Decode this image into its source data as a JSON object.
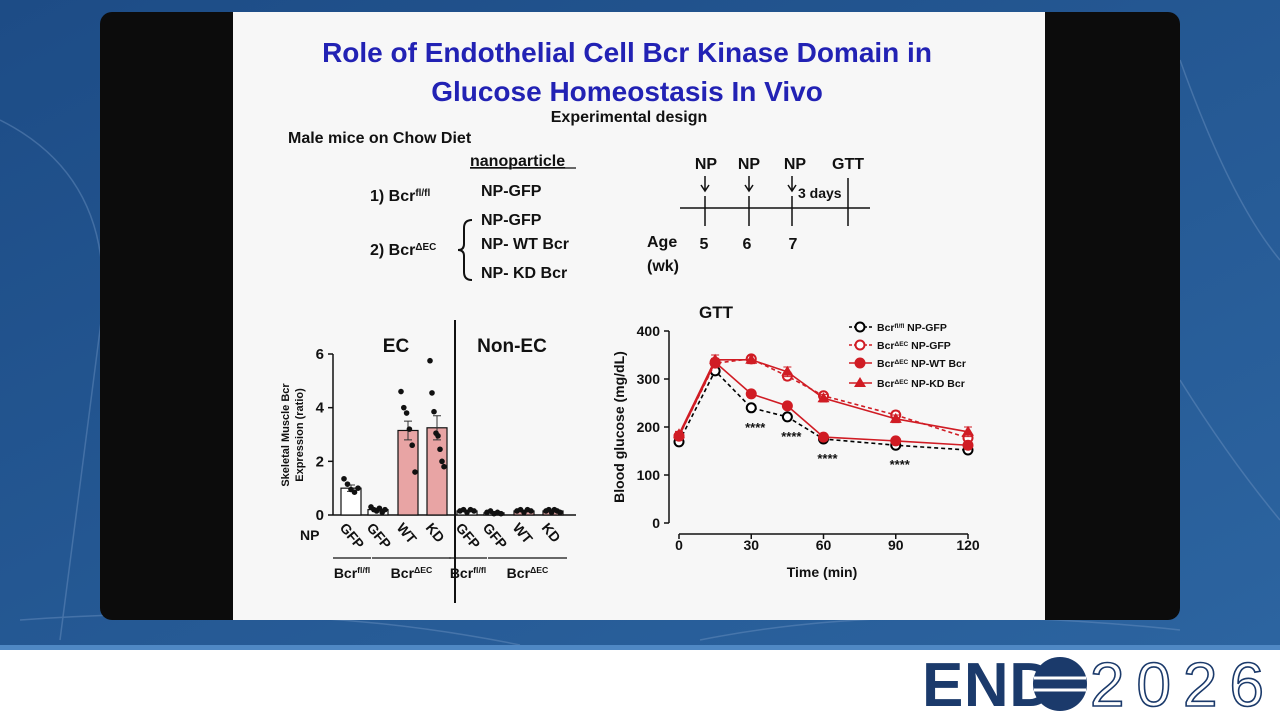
{
  "slide": {
    "title": [
      "Role of Endothelial Cell Bcr Kinase Domain in",
      "Glucose Homeostasis In Vivo"
    ],
    "subtitle": "Experimental design"
  },
  "design": {
    "cohort": "Male mice on Chow Diet",
    "treatment_header": "nanoparticle",
    "groups": [
      {
        "label": [
          "1) Bcr",
          "fl/fl"
        ],
        "treatments": [
          "NP-GFP"
        ]
      },
      {
        "label": [
          "2) Bcr",
          "ΔEC"
        ],
        "treatments": [
          "NP-GFP",
          "NP- WT Bcr",
          "NP- KD Bcr"
        ]
      }
    ]
  },
  "timeline": {
    "events": [
      "NP",
      "NP",
      "NP",
      "GTT"
    ],
    "interval": "3 days",
    "age_label": [
      "Age",
      "(wk)"
    ],
    "ages": [
      "5",
      "6",
      "7"
    ]
  },
  "chart_data": [
    {
      "type": "bar",
      "ylabel": [
        "Skeletal Muscle Bcr",
        "Expression (ratio)"
      ],
      "panels": [
        "EC",
        "Non-EC"
      ],
      "x_prefix": "NP",
      "categories": [
        "GFP",
        "GFP",
        "WT",
        "KD",
        "GFP",
        "GFP",
        "WT",
        "KD"
      ],
      "values": [
        1.0,
        0.2,
        3.15,
        3.25,
        0.15,
        0.08,
        0.15,
        0.15
      ],
      "errors": [
        0.12,
        0.05,
        0.35,
        0.45,
        0.03,
        0.03,
        0.03,
        0.03
      ],
      "points": [
        [
          1.35,
          1.15,
          0.95,
          0.85,
          1.0
        ],
        [
          0.3,
          0.2,
          0.15,
          0.25,
          0.1,
          0.2
        ],
        [
          4.6,
          4.0,
          3.8,
          3.2,
          2.6,
          1.6
        ],
        [
          5.75,
          4.55,
          3.85,
          3.05,
          2.95,
          2.45,
          2.0,
          1.8
        ],
        [
          0.15,
          0.2,
          0.1,
          0.2,
          0.15
        ],
        [
          0.1,
          0.15,
          0.05,
          0.1,
          0.05
        ],
        [
          0.15,
          0.2,
          0.1,
          0.2,
          0.15
        ],
        [
          0.15,
          0.2,
          0.1,
          0.2,
          0.15,
          0.1
        ]
      ],
      "colors": [
        "#ffffff",
        "#ffffff",
        "#e8a4a4",
        "#e8a4a4",
        "#ffffff",
        "#ffffff",
        "#e8a4a4",
        "#e8a4a4"
      ],
      "groups": [
        [
          "Bcr",
          "fl/fl"
        ],
        [
          "Bcr",
          "ΔEC"
        ],
        [
          "Bcr",
          "fl/fl"
        ],
        [
          "Bcr",
          "ΔEC"
        ]
      ],
      "ylim": [
        0,
        6
      ],
      "yticks": [
        0,
        2,
        4,
        6
      ]
    },
    {
      "type": "line",
      "title": "GTT",
      "xlabel": "Time (min)",
      "ylabel": "Blood glucose (mg/dL)",
      "x": [
        0,
        15,
        30,
        45,
        60,
        90,
        120
      ],
      "series": [
        {
          "name": [
            "Bcr",
            "fl/fl",
            " NP-GFP"
          ],
          "color": "#000000",
          "dashed": true,
          "marker": "open-circle",
          "values": [
            169,
            317,
            240,
            221,
            175,
            162,
            152
          ],
          "errors": [
            6,
            8,
            7,
            6,
            5,
            5,
            5
          ]
        },
        {
          "name": [
            "Bcr",
            "ΔEC",
            " NP-GFP"
          ],
          "color": "#d01c24",
          "dashed": true,
          "marker": "open-circle",
          "values": [
            181,
            333,
            342,
            306,
            265,
            225,
            177
          ],
          "errors": [
            6,
            8,
            7,
            8,
            7,
            8,
            8
          ]
        },
        {
          "name": [
            "Bcr",
            "ΔEC",
            " NP-WT Bcr"
          ],
          "color": "#d01c24",
          "dashed": false,
          "marker": "filled-circle",
          "values": [
            181,
            335,
            269,
            244,
            179,
            171,
            162
          ],
          "errors": [
            6,
            8,
            7,
            6,
            6,
            5,
            5
          ]
        },
        {
          "name": [
            "Bcr",
            "ΔEC",
            " NP-KD Bcr"
          ],
          "color": "#d01c24",
          "dashed": false,
          "marker": "triangle",
          "values": [
            185,
            340,
            340,
            315,
            260,
            217,
            190
          ],
          "errors": [
            6,
            10,
            8,
            10,
            8,
            8,
            10
          ]
        }
      ],
      "xlim": [
        0,
        120
      ],
      "xticks": [
        0,
        30,
        60,
        90,
        120
      ],
      "ylim": [
        0,
        400
      ],
      "yticks": [
        0,
        100,
        200,
        300,
        400
      ],
      "annotations": [
        {
          "text": "****",
          "x": 30
        },
        {
          "text": "****",
          "x": 45
        },
        {
          "text": "****",
          "x": 60
        },
        {
          "text": "****",
          "x": 90
        }
      ]
    }
  ],
  "footer": {
    "logo": [
      "END",
      "2026"
    ]
  }
}
